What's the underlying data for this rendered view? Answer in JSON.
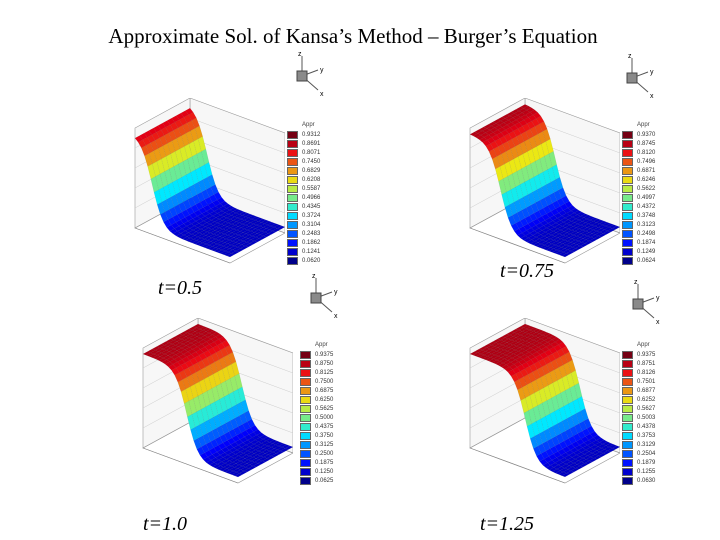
{
  "title": "Approximate Sol. of Kansa’s Method – Burger’s Equation",
  "colors": {
    "surface_top": "#e02010",
    "surface_bottom": "#1a3ce0",
    "background": "#ffffff"
  },
  "panels": [
    {
      "id": "t05",
      "caption": "t=0.5",
      "legend_title": "Appr",
      "legend_values": [
        "0.9312",
        "0.8691",
        "0.8071",
        "0.7450",
        "0.6829",
        "0.6208",
        "0.5587",
        "0.4966",
        "0.4345",
        "0.3724",
        "0.3104",
        "0.2483",
        "0.1862",
        "0.1241",
        "0.0620"
      ]
    },
    {
      "id": "t075",
      "caption": "t=0.75",
      "legend_title": "Appr",
      "legend_values": [
        "0.9370",
        "0.8745",
        "0.8120",
        "0.7496",
        "0.6871",
        "0.6246",
        "0.5622",
        "0.4997",
        "0.4372",
        "0.3748",
        "0.3123",
        "0.2498",
        "0.1874",
        "0.1249",
        "0.0624"
      ]
    },
    {
      "id": "t10",
      "caption": "t=1.0",
      "legend_title": "Appr",
      "legend_values": [
        "0.9375",
        "0.8750",
        "0.8125",
        "0.7500",
        "0.6875",
        "0.6250",
        "0.5625",
        "0.5000",
        "0.4375",
        "0.3750",
        "0.3125",
        "0.2500",
        "0.1875",
        "0.1250",
        "0.0625"
      ]
    },
    {
      "id": "t125",
      "caption": "t=1.25",
      "legend_title": "Appr",
      "legend_values": [
        "0.9375",
        "0.8751",
        "0.8126",
        "0.7501",
        "0.6877",
        "0.6252",
        "0.5627",
        "0.5003",
        "0.4378",
        "0.3753",
        "0.3129",
        "0.2504",
        "0.1879",
        "0.1255",
        "0.0630"
      ]
    }
  ],
  "axis_labels": {
    "x": "x",
    "y": "y",
    "z": "z"
  }
}
